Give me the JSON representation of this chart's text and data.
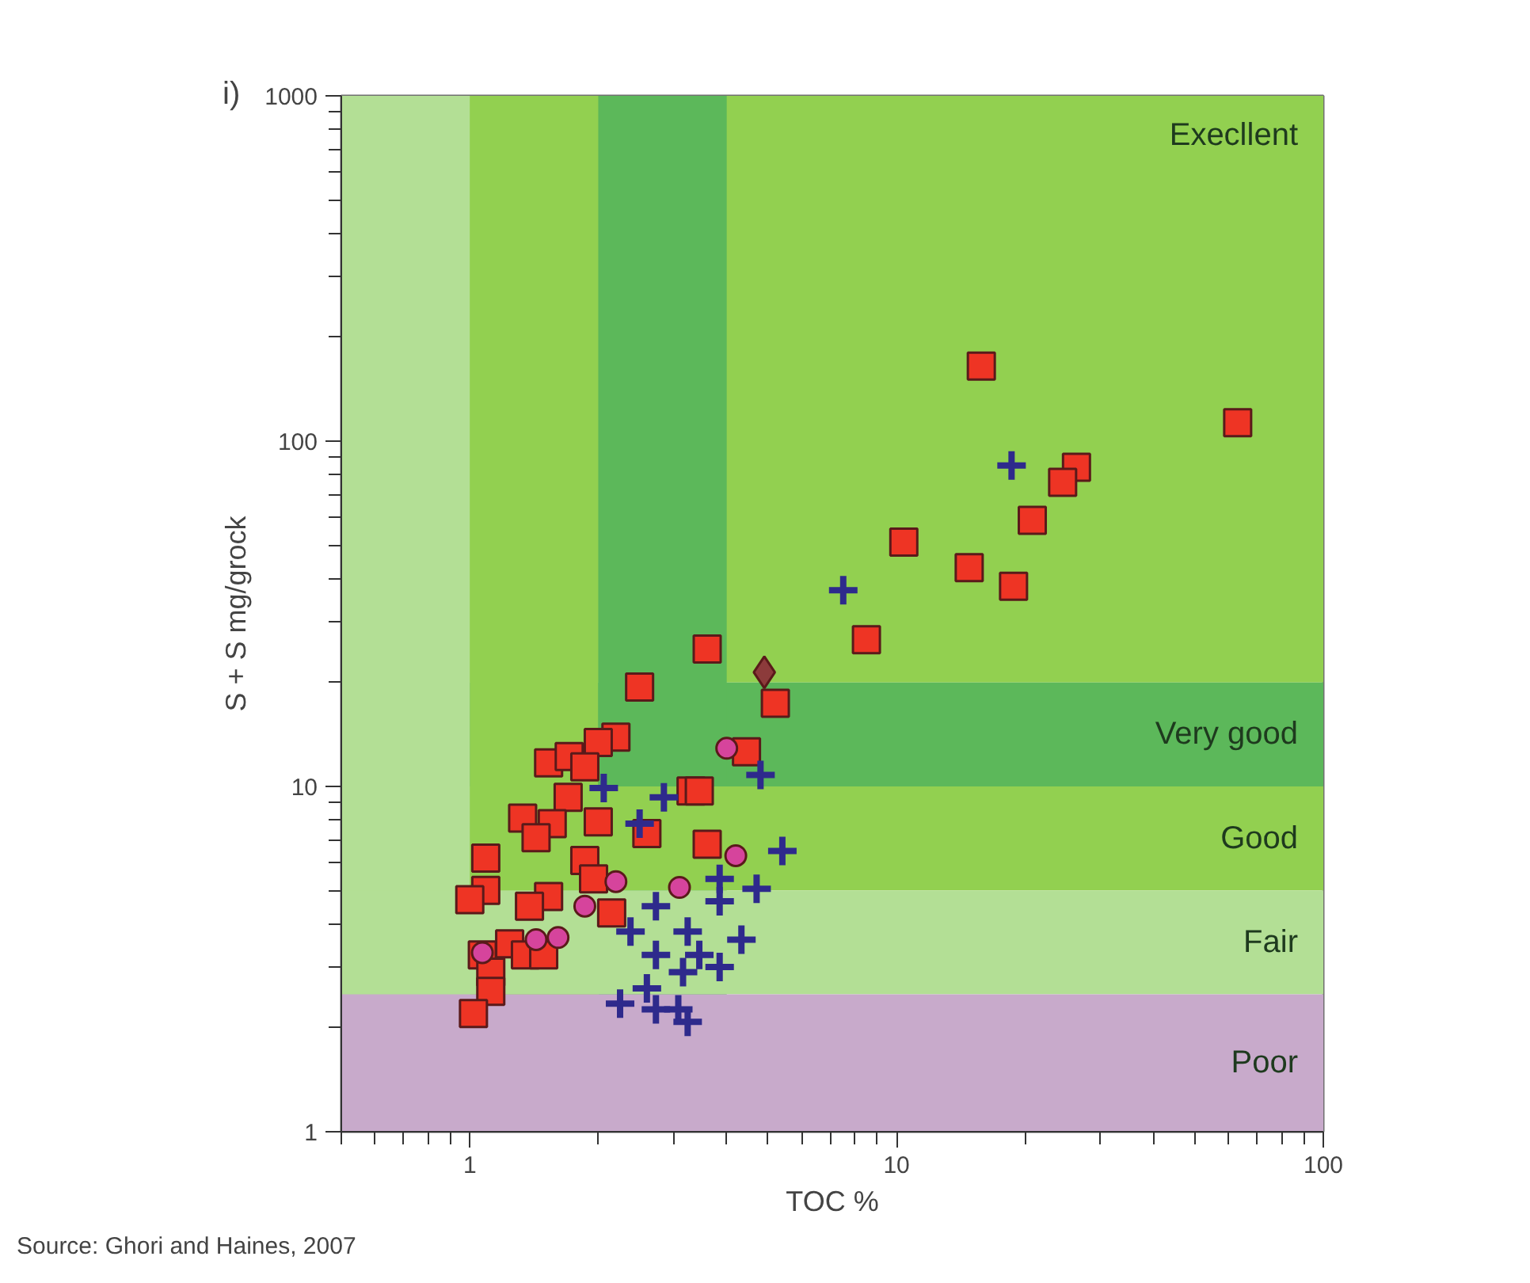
{
  "chart_data": {
    "type": "scatter",
    "title": "i)",
    "xlabel": "TOC %",
    "ylabel": "S + S mg/grock",
    "annotations": [
      "Source: Ghori and Haines, 2007"
    ],
    "log": "xy",
    "xlim": [
      0.5,
      100
    ],
    "ylim": [
      1,
      1000
    ],
    "xticks": [
      1,
      10,
      100
    ],
    "yticks": [
      1,
      10,
      100,
      1000
    ],
    "grid": false,
    "bands": [
      {
        "axis": "y",
        "from": 20,
        "to": 1000,
        "label": "Execllent",
        "color": "#92d050"
      },
      {
        "axis": "y",
        "from": 10,
        "to": 20,
        "label": "Very good",
        "color": "#5cb85a"
      },
      {
        "axis": "x",
        "from": 1,
        "to": 2,
        "color": "#92d050"
      },
      {
        "axis": "x",
        "from": 2,
        "to": 4,
        "color": "#5cb85a"
      },
      {
        "axis": "y",
        "from": 5,
        "to": 10,
        "label": "Good",
        "color": "#92d050"
      },
      {
        "axis": "x",
        "from": 0.5,
        "to": 1,
        "color": "#b3df95"
      },
      {
        "axis": "y",
        "from": 2.5,
        "to": 5,
        "label": "Fair",
        "color": "#b3df95"
      },
      {
        "axis": "y",
        "from": 1,
        "to": 2.5,
        "label": "Poor",
        "color": "#c8aacb"
      }
    ],
    "series": [
      {
        "marker": "square",
        "color": "#ee3424",
        "x": [
          63,
          15.8,
          26.4,
          24.5,
          20.8,
          10.4,
          14.8,
          18.8,
          8.5,
          5.2,
          3.6,
          2.5,
          2.2,
          2.0,
          1.53,
          1.71,
          1.86,
          1.7,
          1.33,
          1.56,
          2.0,
          1.43,
          1.86,
          1.95,
          4.45,
          3.3,
          3.45,
          2.6,
          3.6,
          1.09,
          1.09,
          1.0,
          1.53,
          1.38,
          2.15,
          1.24,
          1.35,
          1.07,
          1.12,
          1.12,
          1.02,
          1.49
        ],
        "values": [
          113,
          165,
          84,
          76,
          59,
          51,
          43,
          38,
          26.6,
          17.4,
          25,
          19.4,
          13.9,
          13.4,
          11.7,
          12.2,
          11.4,
          9.3,
          8.1,
          7.8,
          7.9,
          7.1,
          6.1,
          5.4,
          12.6,
          9.7,
          9.7,
          7.3,
          6.8,
          6.2,
          5.0,
          4.7,
          4.8,
          4.5,
          4.3,
          3.5,
          3.25,
          3.25,
          2.9,
          2.55,
          2.2,
          3.25
        ]
      },
      {
        "marker": "circle",
        "color": "#d6449c",
        "x": [
          4.0,
          2.2,
          3.1,
          4.2,
          1.86,
          1.43,
          1.61,
          1.07
        ],
        "values": [
          12.9,
          5.3,
          5.1,
          6.3,
          4.5,
          3.6,
          3.65,
          3.3
        ]
      },
      {
        "marker": "cross",
        "color": "#2e2a8c",
        "x": [
          18.6,
          7.5,
          4.8,
          2.06,
          2.85,
          2.5,
          5.4,
          3.85,
          3.85,
          4.7,
          2.73,
          2.38,
          3.24,
          4.33,
          2.73,
          3.45,
          3.16,
          2.25,
          2.73,
          3.08,
          3.24,
          2.6,
          3.85
        ],
        "values": [
          85,
          37,
          10.8,
          9.9,
          9.3,
          7.8,
          6.5,
          5.4,
          4.65,
          5.05,
          4.5,
          3.8,
          3.8,
          3.6,
          3.25,
          3.25,
          2.9,
          2.35,
          2.26,
          2.26,
          2.08,
          2.6,
          3.0
        ]
      },
      {
        "marker": "diamond",
        "color": "#8c3b3b",
        "x": [
          4.9
        ],
        "values": [
          21.4
        ]
      }
    ]
  }
}
